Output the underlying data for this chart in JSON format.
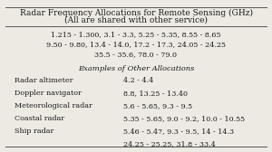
{
  "title_line1": "Radar Frequency Allocations for Remote Sensing (GHz)",
  "title_line2": "(All are shared with other service)",
  "freq_lines": [
    "1.215 - 1.300, 3.1 - 3.3, 5.25 - 5.35, 8.55 - 8.65",
    "9.50 - 9.80, 13.4 - 14.0, 17.2 - 17.3, 24.05 - 24.25",
    "35.5 - 35.6, 78.0 - 79.0"
  ],
  "section_header": "Examples of Other Allocations",
  "table_rows": [
    [
      "Radar altimeter",
      "4.2 - 4.4"
    ],
    [
      "Doppler navigator",
      "8.8, 13.25 - 13.40"
    ],
    [
      "Meteorological radar",
      "5.6 - 5.65, 9.3 - 9.5"
    ],
    [
      "Coastal radar",
      "5.35 - 5.65, 9.0 - 9.2, 10.0 - 10.55"
    ],
    [
      "Ship radar",
      "5.46 - 5.47, 9.3 - 9.5, 14 - 14.3"
    ],
    [
      "",
      "24.25 - 25.25, 31.8 - 33.4"
    ]
  ],
  "bg_color": "#edeae3",
  "text_color": "#1a1a1a",
  "border_color": "#555555",
  "title_fontsize": 6.5,
  "body_fontsize": 5.8,
  "header_fontsize": 6.0
}
